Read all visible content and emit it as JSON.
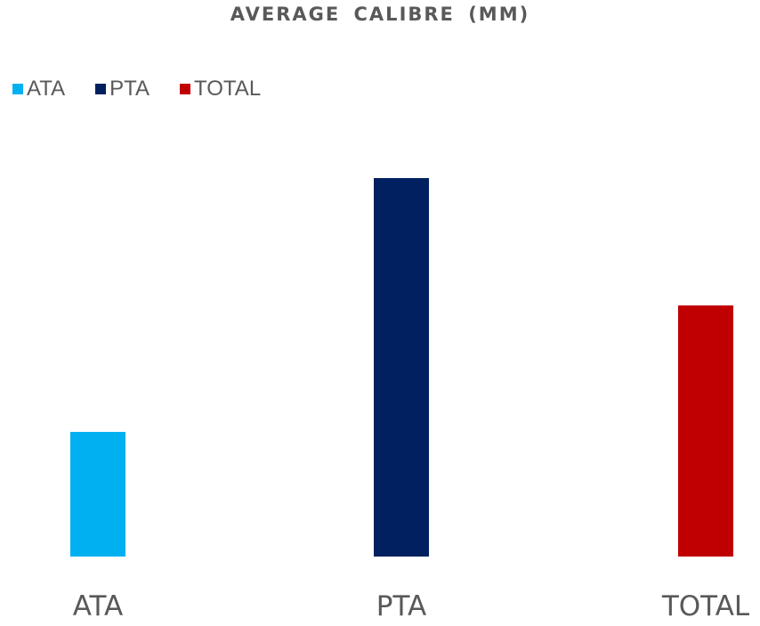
{
  "chart_data": {
    "type": "bar",
    "title": "AVERAGE CALIBRE (MM)",
    "categories": [
      "ATA",
      "PTA",
      "TOTAL"
    ],
    "series": [
      {
        "name": "ATA",
        "color": "#00b0f0",
        "values": [
          1.4,
          null,
          null
        ]
      },
      {
        "name": "PTA",
        "color": "#002060",
        "values": [
          null,
          4.25,
          null
        ]
      },
      {
        "name": "TOTAL",
        "color": "#c00000",
        "values": [
          null,
          null,
          2.82
        ]
      }
    ],
    "values": [
      1.4,
      4.25,
      2.82
    ],
    "colors": [
      "#00b0f0",
      "#002060",
      "#c00000"
    ],
    "xlabel": "",
    "ylabel": "",
    "ylim": [
      0,
      5
    ],
    "grid": false,
    "legend_position": "top-left"
  }
}
